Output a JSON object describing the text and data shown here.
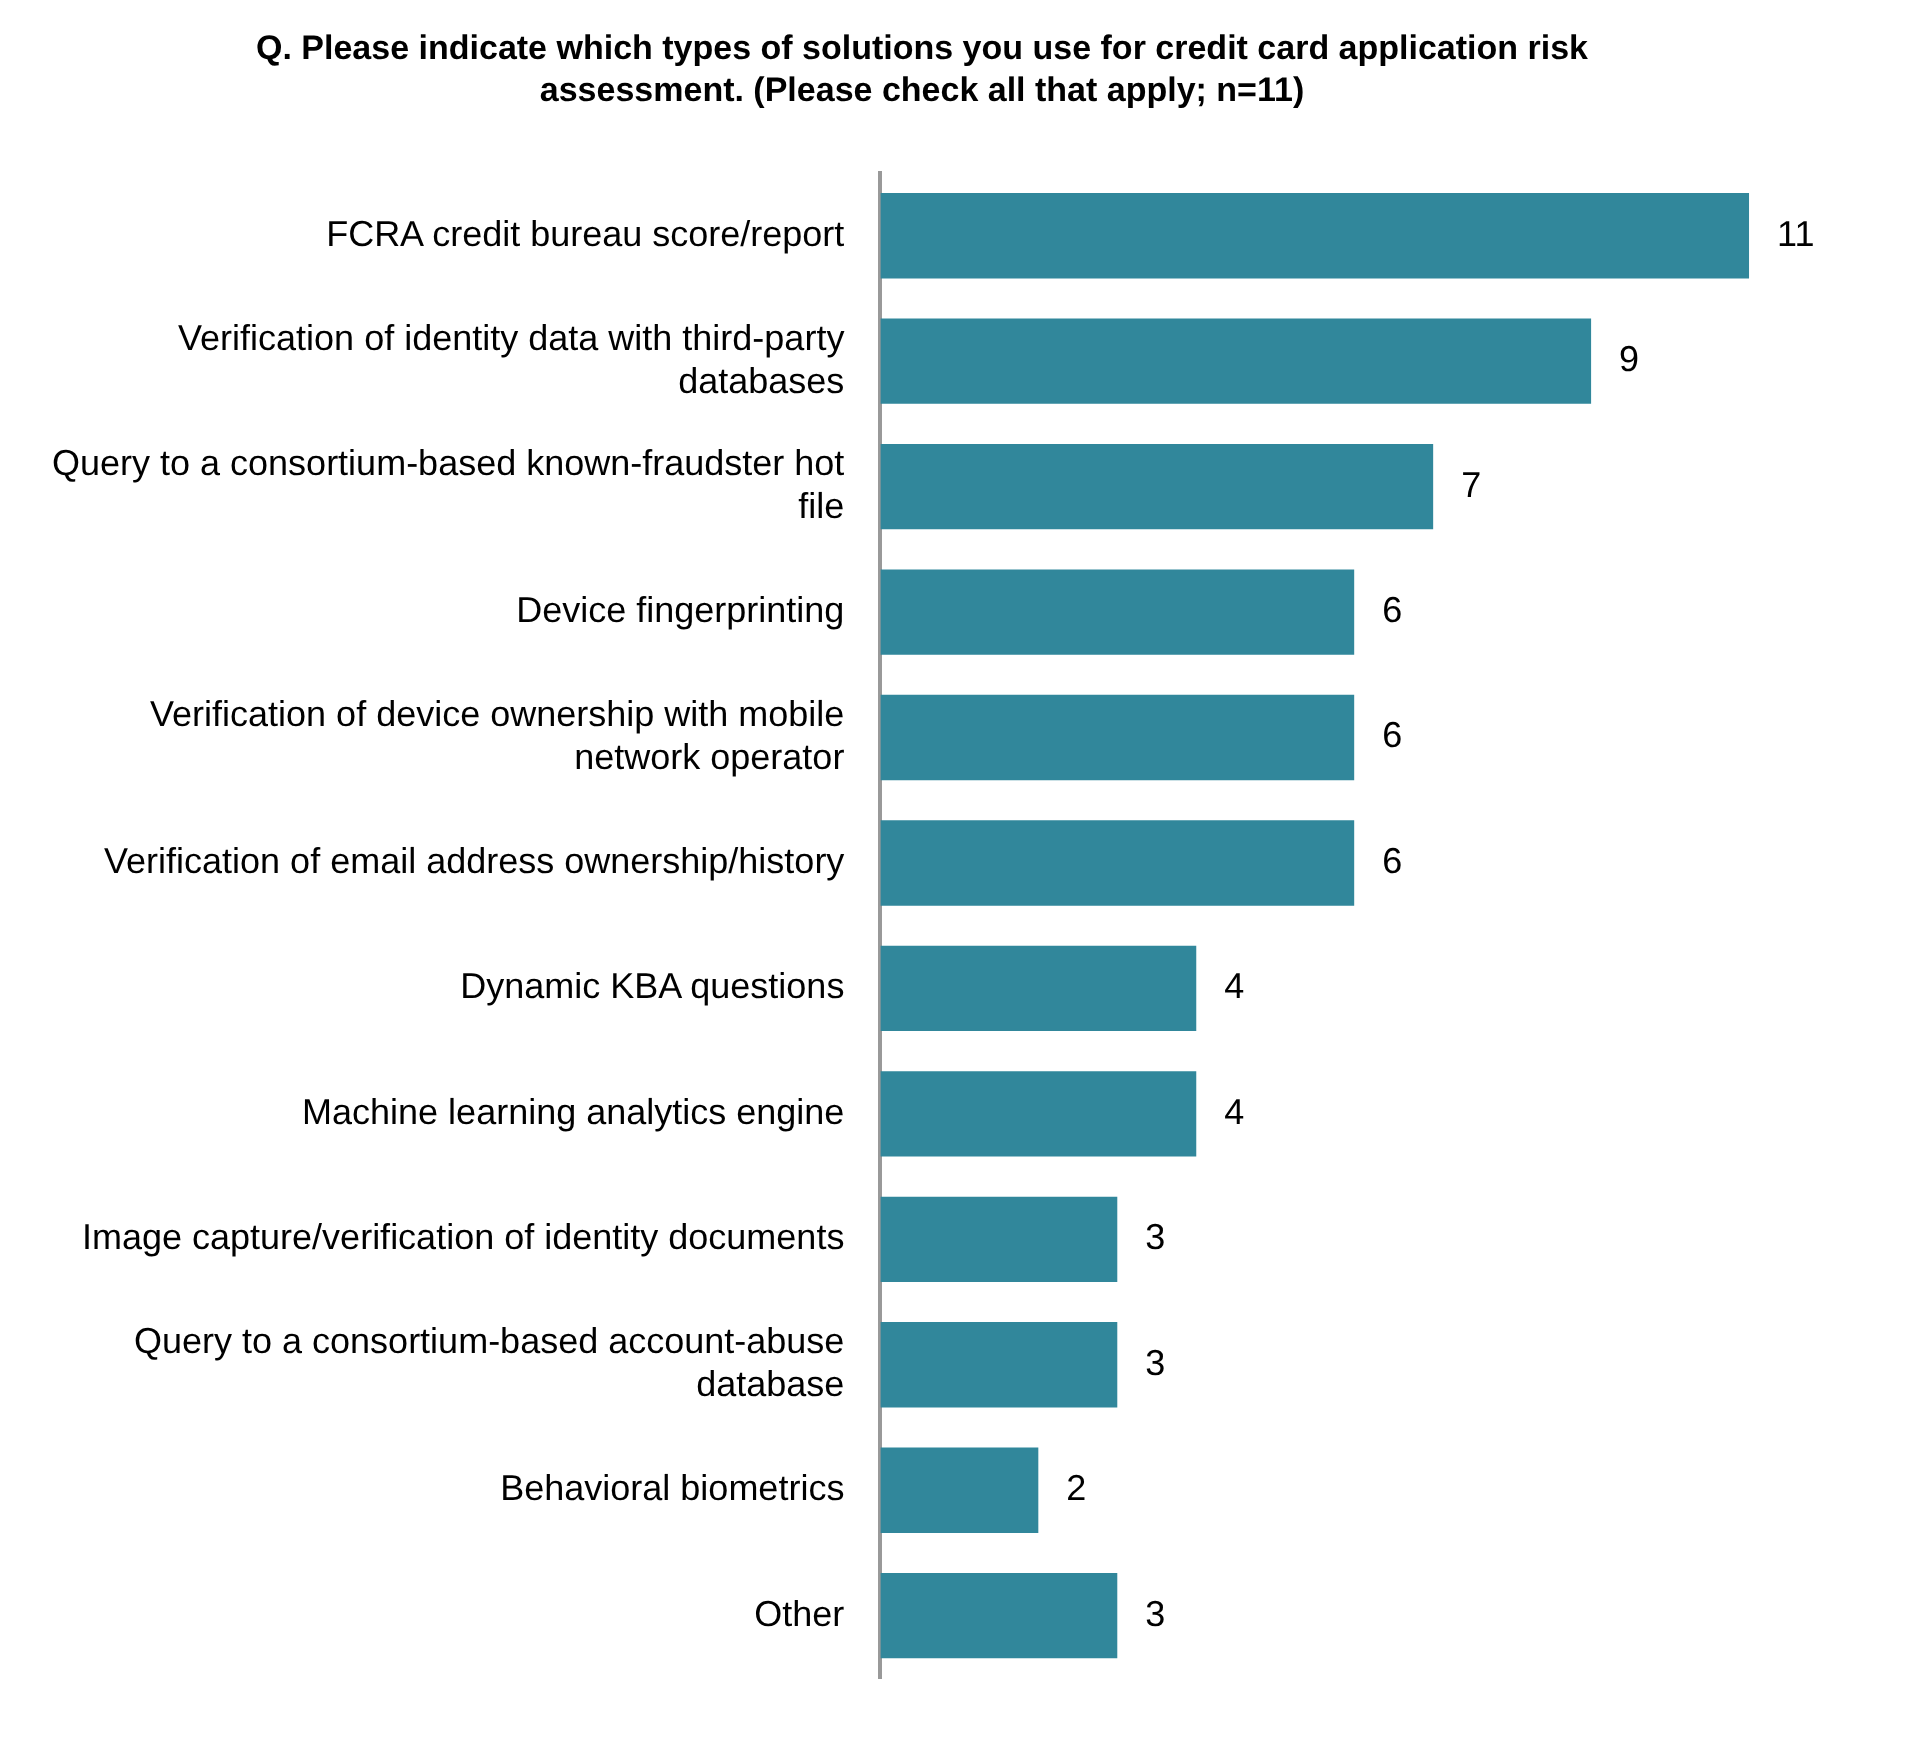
{
  "chart_data": {
    "type": "bar",
    "orientation": "horizontal",
    "title": "Q. Please indicate which types of solutions you use for credit card application risk assessment. (Please check all that apply; n=11)",
    "categories": [
      "FCRA credit bureau score/report",
      "Verification of identity data with third-party databases",
      "Query to a consortium-based known-fraudster hot file",
      "Device fingerprinting",
      "Verification of device ownership with mobile network operator",
      "Verification of email address ownership/history",
      "Dynamic KBA questions",
      "Machine learning analytics engine",
      "Image capture/verification of identity documents",
      "Query to a consortium-based account-abuse database",
      "Behavioral biometrics",
      "Other"
    ],
    "values": [
      11,
      9,
      7,
      6,
      6,
      6,
      4,
      4,
      3,
      3,
      2,
      3
    ],
    "color": "#31879b",
    "data_labels": true,
    "legend": false,
    "grid": false
  }
}
